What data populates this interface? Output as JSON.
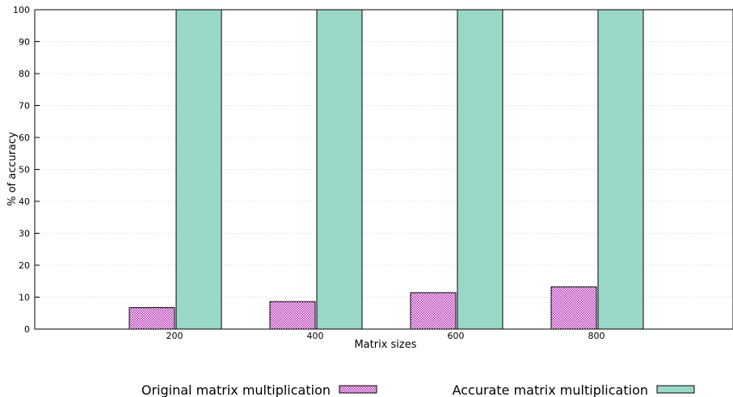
{
  "chart_data": {
    "type": "bar",
    "title": "",
    "xlabel": "Matrix sizes",
    "ylabel": "% of accuracy",
    "categories": [
      "200",
      "400",
      "600",
      "800"
    ],
    "ylim": [
      0,
      100
    ],
    "yticks": [
      0,
      10,
      20,
      30,
      40,
      50,
      60,
      70,
      80,
      90,
      100
    ],
    "grid": true,
    "legend_placement": "bottom",
    "series": [
      {
        "name": "Original matrix multiplication",
        "values": [
          6.7,
          8.6,
          11.4,
          13.2
        ],
        "color": "#cc33cc",
        "pattern": "checkered"
      },
      {
        "name": "Accurate matrix multiplication",
        "values": [
          100,
          100,
          100,
          100
        ],
        "color": "#99d8c9",
        "pattern": "solid"
      }
    ]
  }
}
